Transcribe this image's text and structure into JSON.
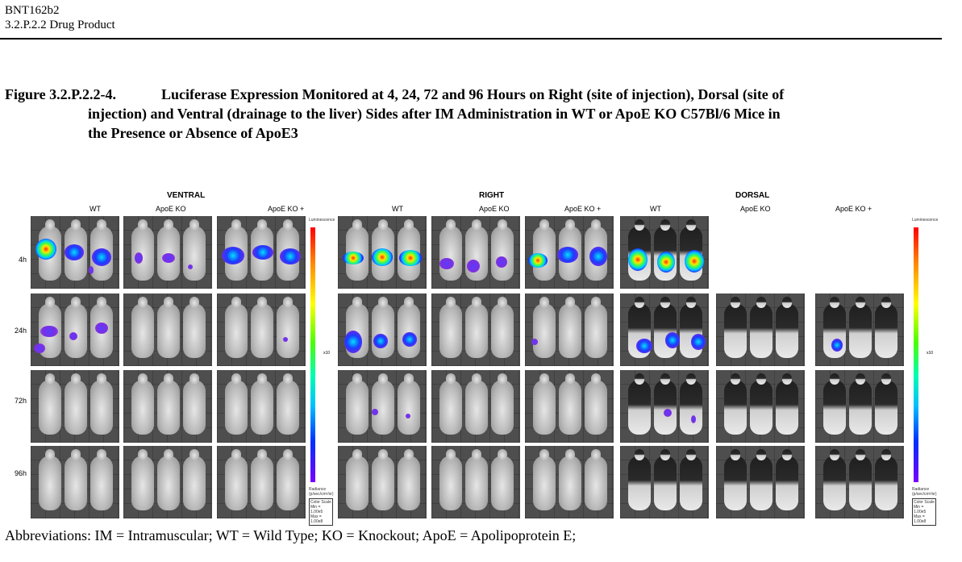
{
  "header": {
    "product": "BNT162b2",
    "section": "3.2.P.2.2 Drug Product"
  },
  "caption": {
    "number": "Figure 3.2.P.2.2-4.",
    "line1": "Luciferase Expression Monitored at 4, 24, 72 and 96 Hours on Right (site of injection), Dorsal (site of",
    "line2": "injection) and Ventral (drainage to the liver) Sides after IM Administration in WT or ApoE KO C57Bl/6 Mice in",
    "line3": "the Presence or Absence of ApoE3"
  },
  "figure": {
    "sections": [
      "VENTRAL",
      "RIGHT",
      "DORSAL"
    ],
    "columns": [
      "WT",
      "ApoE KO",
      "ApoE KO +",
      "WT",
      "ApoE KO",
      "ApoE KO +",
      "WT",
      "ApoE KO",
      "ApoE KO +"
    ],
    "rows": [
      "4h",
      "24h",
      "72h",
      "96h"
    ],
    "scale_left": {
      "title": "Luminescence",
      "mid_label": "x10",
      "footer_units": "Radiance (p/sec/cm²/sr)",
      "box1": "Color Scale",
      "box2": "Min = 1.00e5",
      "box3": "Max = 1.00e8"
    },
    "scale_right": {
      "title": "Luminescence",
      "mid_label": "x10",
      "footer_units": "Radiance (p/sec/cm²/sr)",
      "box1": "Color Scale",
      "box2": "Min = 1.00e5",
      "box3": "Max = 1.00e8"
    },
    "colors": {
      "background_panel": "#4e4e4e",
      "signal_high": "#ff2a00",
      "signal_low": "#8a2be2"
    }
  },
  "footer": {
    "abbreviations": "Abbreviations: IM = Intramuscular; WT = Wild Type; KO = Knockout; ApoE = Apolipoprotein E;"
  }
}
